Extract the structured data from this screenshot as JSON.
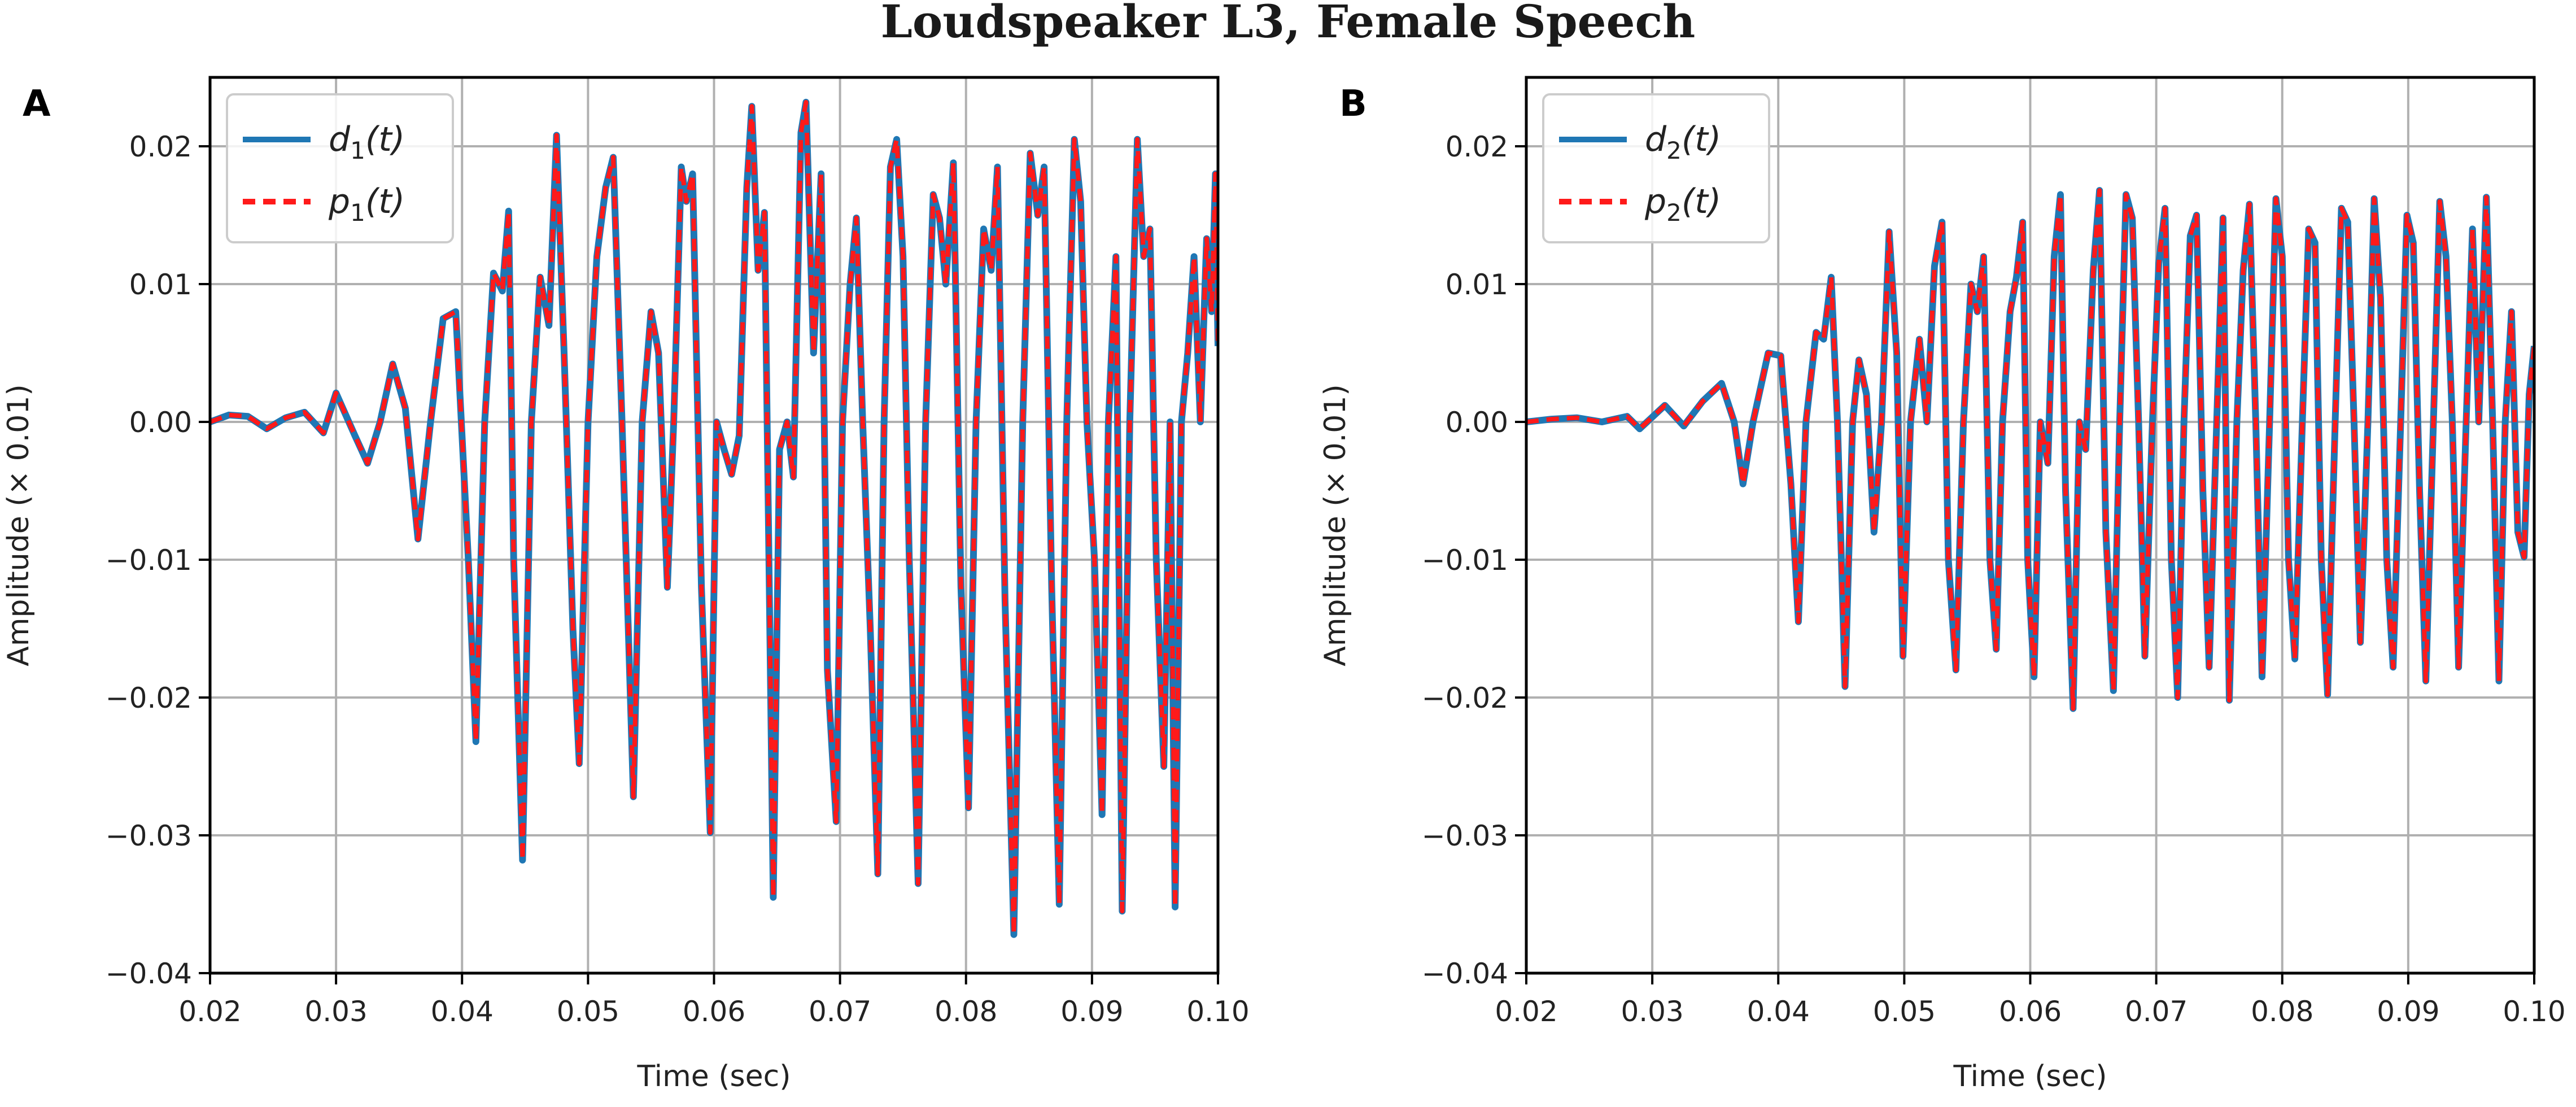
{
  "figure_title": "Loudspeaker L3, Female Speech",
  "chart_data": [
    {
      "type": "line",
      "panel": "A",
      "xlabel": "Time (sec)",
      "ylabel": "Amplitude (× 0.01)",
      "xlim": [
        0.02,
        0.1
      ],
      "ylim": [
        -0.04,
        0.025
      ],
      "xticks": [
        0.02,
        0.03,
        0.04,
        0.05,
        0.06,
        0.07,
        0.08,
        0.09,
        0.1
      ],
      "xtick_labels": [
        "0.02",
        "0.03",
        "0.04",
        "0.05",
        "0.06",
        "0.07",
        "0.08",
        "0.09",
        "0.10"
      ],
      "yticks": [
        0.02,
        0.01,
        0.0,
        -0.01,
        -0.02,
        -0.03,
        -0.04
      ],
      "ytick_labels": [
        "0.02",
        "0.01",
        "0.00",
        "−0.01",
        "−0.02",
        "−0.03",
        "−0.04"
      ],
      "grid": true,
      "legend_position": "top-left",
      "series": [
        {
          "name_base": "d",
          "name_sub": "1",
          "name_arg": "(t)",
          "color": "#1f77b4",
          "style": "solid"
        },
        {
          "name_base": "p",
          "name_sub": "1",
          "name_arg": "(t)",
          "color": "#ff1a1a",
          "style": "dashed"
        }
      ],
      "points": [
        [
          0.02,
          0.0
        ],
        [
          0.0215,
          0.0005
        ],
        [
          0.023,
          0.0004
        ],
        [
          0.0245,
          -0.0005
        ],
        [
          0.026,
          0.0003
        ],
        [
          0.0275,
          0.0007
        ],
        [
          0.029,
          -0.0008
        ],
        [
          0.03,
          0.0021
        ],
        [
          0.0315,
          -0.001
        ],
        [
          0.0325,
          -0.003
        ],
        [
          0.0335,
          0.0
        ],
        [
          0.0345,
          0.0042
        ],
        [
          0.0355,
          0.001
        ],
        [
          0.0365,
          -0.0085
        ],
        [
          0.0375,
          0.0
        ],
        [
          0.0385,
          0.0075
        ],
        [
          0.0395,
          0.008
        ],
        [
          0.0405,
          -0.01
        ],
        [
          0.0411,
          -0.0232
        ],
        [
          0.0418,
          0.0
        ],
        [
          0.0425,
          0.0108
        ],
        [
          0.0432,
          0.0095
        ],
        [
          0.0437,
          0.0153
        ],
        [
          0.0441,
          -0.01
        ],
        [
          0.0448,
          -0.0318
        ],
        [
          0.0455,
          0.0
        ],
        [
          0.0462,
          0.0105
        ],
        [
          0.0469,
          0.007
        ],
        [
          0.0475,
          0.0208
        ],
        [
          0.0481,
          0.005
        ],
        [
          0.0488,
          -0.015
        ],
        [
          0.0493,
          -0.0248
        ],
        [
          0.05,
          0.0
        ],
        [
          0.0507,
          0.012
        ],
        [
          0.0514,
          0.017
        ],
        [
          0.052,
          0.0192
        ],
        [
          0.0527,
          0.0
        ],
        [
          0.0536,
          -0.0272
        ],
        [
          0.0543,
          0.0
        ],
        [
          0.055,
          0.008
        ],
        [
          0.0556,
          0.005
        ],
        [
          0.0563,
          -0.012
        ],
        [
          0.0568,
          0.0
        ],
        [
          0.0574,
          0.0185
        ],
        [
          0.0578,
          0.016
        ],
        [
          0.0583,
          0.018
        ],
        [
          0.059,
          -0.012
        ],
        [
          0.0597,
          -0.0298
        ],
        [
          0.0602,
          0.0
        ],
        [
          0.0608,
          -0.002
        ],
        [
          0.0614,
          -0.0038
        ],
        [
          0.062,
          -0.001
        ],
        [
          0.0626,
          0.017
        ],
        [
          0.063,
          0.0229
        ],
        [
          0.0635,
          0.011
        ],
        [
          0.064,
          0.0152
        ],
        [
          0.0645,
          -0.02
        ],
        [
          0.0647,
          -0.0345
        ],
        [
          0.0652,
          -0.002
        ],
        [
          0.0658,
          0.0
        ],
        [
          0.0663,
          -0.004
        ],
        [
          0.0669,
          0.021
        ],
        [
          0.0673,
          0.0232
        ],
        [
          0.0679,
          0.005
        ],
        [
          0.0685,
          0.018
        ],
        [
          0.069,
          -0.018
        ],
        [
          0.0697,
          -0.029
        ],
        [
          0.0702,
          0.0
        ],
        [
          0.0708,
          0.01
        ],
        [
          0.0713,
          0.0148
        ],
        [
          0.0718,
          0.0
        ],
        [
          0.0724,
          -0.015
        ],
        [
          0.073,
          -0.0328
        ],
        [
          0.0735,
          0.0
        ],
        [
          0.074,
          0.0185
        ],
        [
          0.0745,
          0.0205
        ],
        [
          0.075,
          0.012
        ],
        [
          0.0755,
          -0.01
        ],
        [
          0.0762,
          -0.0335
        ],
        [
          0.0768,
          0.0
        ],
        [
          0.0774,
          0.0165
        ],
        [
          0.0779,
          0.0148
        ],
        [
          0.0784,
          0.01
        ],
        [
          0.079,
          0.0188
        ],
        [
          0.0796,
          -0.012
        ],
        [
          0.0802,
          -0.028
        ],
        [
          0.0808,
          0.0
        ],
        [
          0.0814,
          0.014
        ],
        [
          0.082,
          0.011
        ],
        [
          0.0825,
          0.0185
        ],
        [
          0.0831,
          -0.013
        ],
        [
          0.0838,
          -0.0372
        ],
        [
          0.0845,
          0.0
        ],
        [
          0.0851,
          0.0195
        ],
        [
          0.0857,
          0.015
        ],
        [
          0.0862,
          0.0185
        ],
        [
          0.0868,
          -0.012
        ],
        [
          0.0874,
          -0.035
        ],
        [
          0.088,
          0.0
        ],
        [
          0.0886,
          0.0205
        ],
        [
          0.0891,
          0.016
        ],
        [
          0.0896,
          0.0
        ],
        [
          0.0902,
          -0.01
        ],
        [
          0.0908,
          -0.0285
        ],
        [
          0.0913,
          0.0
        ],
        [
          0.0919,
          0.012
        ],
        [
          0.0924,
          -0.0355
        ],
        [
          0.093,
          0.0
        ],
        [
          0.0936,
          0.0205
        ],
        [
          0.0941,
          0.012
        ],
        [
          0.0946,
          0.014
        ],
        [
          0.0951,
          -0.01
        ],
        [
          0.0957,
          -0.025
        ],
        [
          0.0962,
          0.0
        ],
        [
          0.0966,
          -0.0352
        ],
        [
          0.0971,
          0.0
        ],
        [
          0.0976,
          0.005
        ],
        [
          0.0981,
          0.012
        ],
        [
          0.0986,
          0.0
        ],
        [
          0.0991,
          0.0133
        ],
        [
          0.0995,
          0.008
        ],
        [
          0.0998,
          0.018
        ],
        [
          0.1,
          0.0055
        ]
      ]
    },
    {
      "type": "line",
      "panel": "B",
      "xlabel": "Time (sec)",
      "ylabel": "Amplitude (× 0.01)",
      "xlim": [
        0.02,
        0.1
      ],
      "ylim": [
        -0.04,
        0.025
      ],
      "xticks": [
        0.02,
        0.03,
        0.04,
        0.05,
        0.06,
        0.07,
        0.08,
        0.09,
        0.1
      ],
      "xtick_labels": [
        "0.02",
        "0.03",
        "0.04",
        "0.05",
        "0.06",
        "0.07",
        "0.08",
        "0.09",
        "0.10"
      ],
      "yticks": [
        0.02,
        0.01,
        0.0,
        -0.01,
        -0.02,
        -0.03,
        -0.04
      ],
      "ytick_labels": [
        "0.02",
        "0.01",
        "0.00",
        "−0.01",
        "−0.02",
        "−0.03",
        "−0.04"
      ],
      "grid": true,
      "legend_position": "top-left",
      "series": [
        {
          "name_base": "d",
          "name_sub": "2",
          "name_arg": "(t)",
          "color": "#1f77b4",
          "style": "solid"
        },
        {
          "name_base": "p",
          "name_sub": "2",
          "name_arg": "(t)",
          "color": "#ff1a1a",
          "style": "dashed"
        }
      ],
      "points": [
        [
          0.02,
          0.0
        ],
        [
          0.022,
          0.0002
        ],
        [
          0.024,
          0.0003
        ],
        [
          0.026,
          0.0
        ],
        [
          0.028,
          0.0004
        ],
        [
          0.029,
          -0.0005
        ],
        [
          0.031,
          0.0012
        ],
        [
          0.0325,
          -0.0003
        ],
        [
          0.034,
          0.0015
        ],
        [
          0.0355,
          0.0028
        ],
        [
          0.0365,
          0.0
        ],
        [
          0.0372,
          -0.0045
        ],
        [
          0.038,
          0.0
        ],
        [
          0.0392,
          0.005
        ],
        [
          0.0402,
          0.0048
        ],
        [
          0.041,
          -0.0045
        ],
        [
          0.0416,
          -0.0145
        ],
        [
          0.0422,
          0.0
        ],
        [
          0.043,
          0.0065
        ],
        [
          0.0436,
          0.006
        ],
        [
          0.0442,
          0.0105
        ],
        [
          0.0447,
          0.0
        ],
        [
          0.0453,
          -0.0192
        ],
        [
          0.0459,
          0.0
        ],
        [
          0.0464,
          0.0045
        ],
        [
          0.047,
          0.002
        ],
        [
          0.0476,
          -0.008
        ],
        [
          0.0482,
          0.0
        ],
        [
          0.0488,
          0.0138
        ],
        [
          0.0494,
          0.005
        ],
        [
          0.0499,
          -0.017
        ],
        [
          0.0505,
          0.0
        ],
        [
          0.0512,
          0.006
        ],
        [
          0.0518,
          0.0
        ],
        [
          0.0524,
          0.0113
        ],
        [
          0.053,
          0.0145
        ],
        [
          0.0535,
          -0.01
        ],
        [
          0.0541,
          -0.018
        ],
        [
          0.0547,
          0.0
        ],
        [
          0.0553,
          0.01
        ],
        [
          0.0558,
          0.008
        ],
        [
          0.0563,
          0.012
        ],
        [
          0.0568,
          -0.01
        ],
        [
          0.0573,
          -0.0165
        ],
        [
          0.0578,
          0.0
        ],
        [
          0.0584,
          0.008
        ],
        [
          0.0589,
          0.0105
        ],
        [
          0.0594,
          0.0145
        ],
        [
          0.0598,
          -0.01
        ],
        [
          0.0603,
          -0.0185
        ],
        [
          0.0608,
          0.0
        ],
        [
          0.0614,
          -0.003
        ],
        [
          0.0619,
          0.012
        ],
        [
          0.0624,
          0.0165
        ],
        [
          0.0628,
          -0.005
        ],
        [
          0.0634,
          -0.0208
        ],
        [
          0.0639,
          0.0
        ],
        [
          0.0644,
          -0.002
        ],
        [
          0.065,
          0.011
        ],
        [
          0.0655,
          0.0168
        ],
        [
          0.066,
          -0.008
        ],
        [
          0.0666,
          -0.0195
        ],
        [
          0.0671,
          0.0
        ],
        [
          0.0676,
          0.0165
        ],
        [
          0.0681,
          0.0148
        ],
        [
          0.0686,
          0.0
        ],
        [
          0.0691,
          -0.017
        ],
        [
          0.0697,
          0.0
        ],
        [
          0.0702,
          0.0115
        ],
        [
          0.0707,
          0.0155
        ],
        [
          0.0712,
          -0.01
        ],
        [
          0.0717,
          -0.02
        ],
        [
          0.0722,
          0.0
        ],
        [
          0.0727,
          0.0135
        ],
        [
          0.0732,
          0.015
        ],
        [
          0.0737,
          -0.005
        ],
        [
          0.0742,
          -0.0178
        ],
        [
          0.0748,
          0.0
        ],
        [
          0.0753,
          0.0148
        ],
        [
          0.0758,
          -0.0202
        ],
        [
          0.0764,
          0.0
        ],
        [
          0.0769,
          0.011
        ],
        [
          0.0774,
          0.0158
        ],
        [
          0.0779,
          0.0
        ],
        [
          0.0784,
          -0.0185
        ],
        [
          0.079,
          0.0
        ],
        [
          0.0795,
          0.0162
        ],
        [
          0.08,
          0.012
        ],
        [
          0.0805,
          -0.01
        ],
        [
          0.081,
          -0.0172
        ],
        [
          0.0816,
          0.0
        ],
        [
          0.0821,
          0.014
        ],
        [
          0.0826,
          0.013
        ],
        [
          0.0831,
          -0.01
        ],
        [
          0.0836,
          -0.0198
        ],
        [
          0.0842,
          0.0
        ],
        [
          0.0847,
          0.0155
        ],
        [
          0.0852,
          0.0145
        ],
        [
          0.0857,
          0.0
        ],
        [
          0.0862,
          -0.016
        ],
        [
          0.0868,
          0.0
        ],
        [
          0.0873,
          0.0162
        ],
        [
          0.0878,
          0.009
        ],
        [
          0.0883,
          -0.01
        ],
        [
          0.0888,
          -0.0178
        ],
        [
          0.0894,
          0.0
        ],
        [
          0.0899,
          0.015
        ],
        [
          0.0904,
          0.013
        ],
        [
          0.0909,
          -0.005
        ],
        [
          0.0914,
          -0.0188
        ],
        [
          0.092,
          0.0
        ],
        [
          0.0925,
          0.016
        ],
        [
          0.093,
          0.012
        ],
        [
          0.0935,
          0.0
        ],
        [
          0.094,
          -0.0178
        ],
        [
          0.0946,
          0.0
        ],
        [
          0.0951,
          0.014
        ],
        [
          0.0956,
          0.0
        ],
        [
          0.0962,
          0.0163
        ],
        [
          0.0967,
          0.0
        ],
        [
          0.0972,
          -0.0188
        ],
        [
          0.0977,
          0.0
        ],
        [
          0.0982,
          0.008
        ],
        [
          0.0987,
          -0.008
        ],
        [
          0.0992,
          -0.0098
        ],
        [
          0.0996,
          0.002
        ],
        [
          0.1,
          0.0055
        ]
      ]
    }
  ]
}
